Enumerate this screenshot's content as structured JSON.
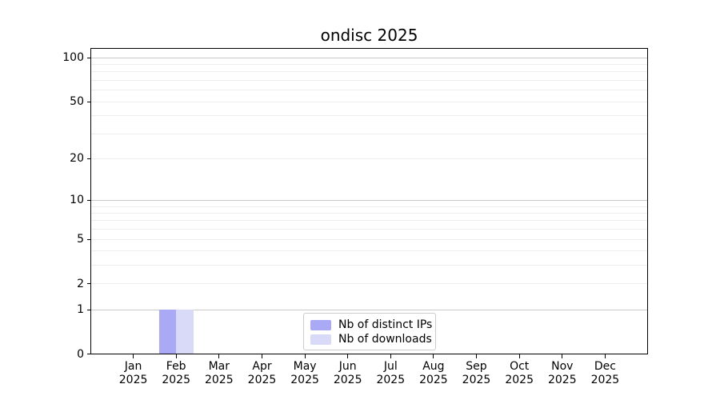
{
  "chart_data": {
    "type": "bar",
    "title": "ondisc 2025",
    "categories": [
      "Jan",
      "Feb",
      "Mar",
      "Apr",
      "May",
      "Jun",
      "Jul",
      "Aug",
      "Sep",
      "Oct",
      "Nov",
      "Dec"
    ],
    "x_tick_second_line": "2025",
    "series": [
      {
        "name": "Nb of distinct IPs",
        "color": "#a9a9f5",
        "values": [
          0,
          1,
          0,
          0,
          0,
          0,
          0,
          0,
          0,
          0,
          0,
          0
        ]
      },
      {
        "name": "Nb of downloads",
        "color": "#d9d9f8",
        "values": [
          0,
          1,
          0,
          0,
          0,
          0,
          0,
          0,
          0,
          0,
          0,
          0
        ]
      }
    ],
    "xlabel": "",
    "ylabel": "",
    "y_scale": "log10(value+1)",
    "ylim": [
      0,
      115
    ],
    "y_tick_labels": [
      "0",
      "1",
      "2",
      "5",
      "10",
      "20",
      "50",
      "100"
    ],
    "y_tick_values": [
      0,
      1,
      2,
      5,
      10,
      20,
      50,
      100
    ],
    "y_major_gridline_values": [
      1,
      10,
      100
    ],
    "y_minor_gridline_values": [
      2,
      3,
      4,
      5,
      6,
      7,
      8,
      9,
      20,
      30,
      40,
      50,
      60,
      70,
      80,
      90
    ],
    "grid": true,
    "legend_position": "lower center"
  },
  "style": {
    "background_color": "#ffffff",
    "spine_color": "#000000",
    "text_color": "#000000",
    "major_grid_color": "#c9c9c9",
    "minor_grid_color": "#ededed",
    "legend_border_color": "#cccccc",
    "bar_color_distinct_ips": "#a9a9f5",
    "bar_color_downloads": "#d9d9f8"
  }
}
